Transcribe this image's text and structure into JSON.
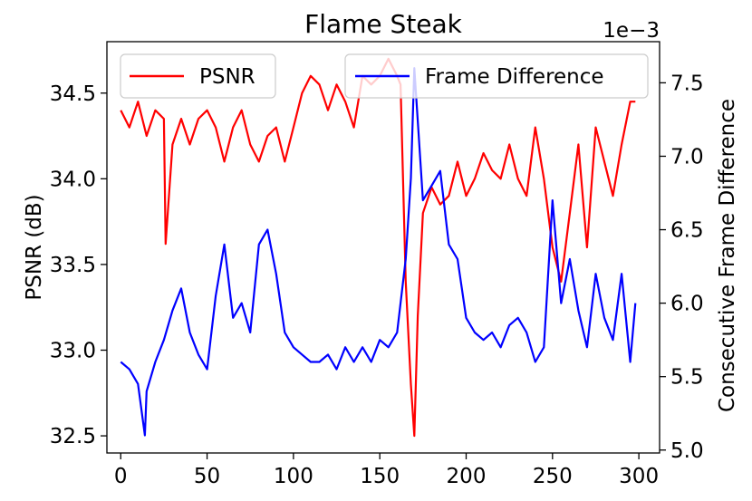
{
  "chart_data": {
    "type": "line",
    "title": "Flame Steak",
    "xlabel": "",
    "ylabel": "PSNR (dB)",
    "ylabel_right": "Consecutive Frame Difference",
    "right_axis_multiplier": "1e−3",
    "xlim": [
      -8,
      312
    ],
    "ylim": [
      32.4,
      34.8
    ],
    "ylim_right": [
      4.98,
      7.78
    ],
    "x_ticks": [
      0,
      50,
      100,
      150,
      200,
      250,
      300
    ],
    "x_tick_labels": [
      "0",
      "50",
      "100",
      "150",
      "200",
      "250",
      "300"
    ],
    "y_ticks": [
      32.5,
      33.0,
      33.5,
      34.0,
      34.5
    ],
    "y_tick_labels": [
      "32.5",
      "33.0",
      "33.5",
      "34.0",
      "34.5"
    ],
    "y_right_ticks": [
      5.0,
      5.5,
      6.0,
      6.5,
      7.0,
      7.5
    ],
    "y_right_tick_labels": [
      "5.0",
      "5.5",
      "6.0",
      "6.5",
      "7.0",
      "7.5"
    ],
    "grid": false,
    "series": [
      {
        "name": "PSNR",
        "axis": "left",
        "color": "#ff0000",
        "x": [
          0,
          5,
          10,
          15,
          20,
          25,
          26,
          30,
          35,
          40,
          45,
          50,
          55,
          60,
          65,
          70,
          75,
          80,
          85,
          90,
          95,
          100,
          105,
          110,
          115,
          120,
          125,
          130,
          135,
          140,
          145,
          150,
          155,
          160,
          162,
          165,
          168,
          170,
          172,
          175,
          180,
          185,
          190,
          195,
          200,
          205,
          210,
          215,
          220,
          225,
          230,
          235,
          240,
          245,
          250,
          255,
          260,
          265,
          270,
          275,
          280,
          285,
          290,
          295,
          298
        ],
        "values": [
          34.4,
          34.3,
          34.45,
          34.25,
          34.4,
          34.35,
          33.62,
          34.2,
          34.35,
          34.2,
          34.35,
          34.4,
          34.3,
          34.1,
          34.3,
          34.4,
          34.2,
          34.1,
          34.25,
          34.3,
          34.1,
          34.3,
          34.5,
          34.6,
          34.55,
          34.4,
          34.55,
          34.45,
          34.3,
          34.6,
          34.55,
          34.6,
          34.7,
          34.6,
          34.55,
          33.4,
          32.8,
          32.5,
          33.2,
          33.8,
          33.95,
          33.85,
          33.9,
          34.1,
          33.9,
          34.0,
          34.15,
          34.05,
          34.0,
          34.2,
          34.0,
          33.9,
          34.3,
          34.0,
          33.6,
          33.4,
          33.8,
          34.2,
          33.6,
          34.3,
          34.1,
          33.9,
          34.2,
          34.45,
          34.45
        ]
      },
      {
        "name": "Frame Difference",
        "axis": "right",
        "color": "#0000ff",
        "x": [
          0,
          5,
          10,
          14,
          15,
          20,
          25,
          30,
          35,
          40,
          45,
          50,
          55,
          60,
          65,
          70,
          75,
          80,
          85,
          90,
          95,
          100,
          105,
          110,
          115,
          120,
          125,
          130,
          135,
          140,
          145,
          150,
          155,
          160,
          165,
          168,
          170,
          175,
          180,
          185,
          190,
          195,
          200,
          205,
          210,
          215,
          220,
          225,
          230,
          235,
          240,
          245,
          250,
          255,
          260,
          265,
          270,
          275,
          280,
          285,
          290,
          295,
          298
        ],
        "values": [
          5.6,
          5.55,
          5.45,
          5.1,
          5.4,
          5.6,
          5.75,
          5.95,
          6.1,
          5.8,
          5.65,
          5.55,
          6.05,
          6.4,
          5.9,
          6.0,
          5.8,
          6.4,
          6.5,
          6.2,
          5.8,
          5.7,
          5.65,
          5.6,
          5.6,
          5.65,
          5.55,
          5.7,
          5.6,
          5.7,
          5.6,
          5.75,
          5.7,
          5.8,
          6.3,
          6.85,
          7.6,
          6.7,
          6.8,
          6.9,
          6.4,
          6.3,
          5.9,
          5.8,
          5.75,
          5.8,
          5.7,
          5.85,
          5.9,
          5.8,
          5.6,
          5.7,
          6.7,
          6.0,
          6.3,
          5.95,
          5.7,
          6.2,
          5.9,
          5.75,
          6.2,
          5.6,
          6.0
        ]
      }
    ],
    "legend": [
      {
        "label": "PSNR",
        "color": "#ff0000",
        "placement": "upper-left"
      },
      {
        "label": "Frame Difference",
        "color": "#0000ff",
        "placement": "upper-right"
      }
    ]
  }
}
